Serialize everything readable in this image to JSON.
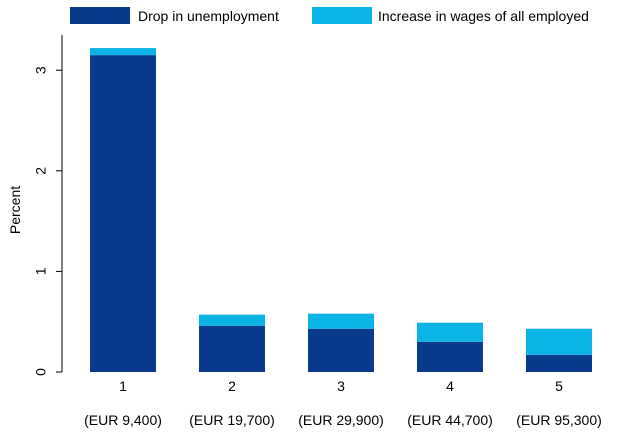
{
  "chart_data": {
    "type": "bar",
    "stacked": true,
    "title": "",
    "xlabel": "",
    "ylabel": "Percent",
    "ylim": [
      0,
      3.35
    ],
    "yticks": [
      "0",
      "1",
      "2",
      "3"
    ],
    "legend_position": "top",
    "grid": false,
    "categories": [
      "1",
      "2",
      "3",
      "4",
      "5"
    ],
    "category_sublabels": [
      "(EUR 9,400)",
      "(EUR 19,700)",
      "(EUR 29,900)",
      "(EUR 44,700)",
      "(EUR 95,300)"
    ],
    "series": [
      {
        "name": "Drop in unemployment",
        "color": "#0a3a8c",
        "values": [
          3.15,
          0.46,
          0.43,
          0.3,
          0.17
        ]
      },
      {
        "name": "Increase in wages of all employed",
        "color": "#0ab4e6",
        "values": [
          0.07,
          0.11,
          0.15,
          0.19,
          0.26
        ]
      }
    ]
  }
}
